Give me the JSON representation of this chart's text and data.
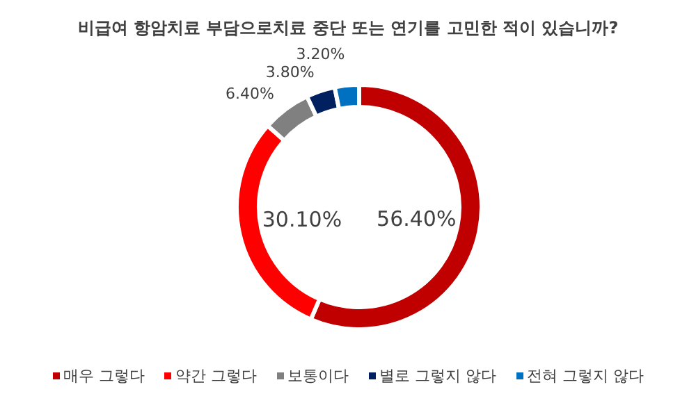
{
  "chart_data": {
    "type": "donut",
    "title": "비급여 항암치료 부담으로치료 중단 또는 연기를 고민한 적이 있습니까?",
    "categories": [
      "매우 그렇다",
      "약간 그렇다",
      "보통이다",
      "별로 그렇지 않다",
      "전혀 그렇지 않다"
    ],
    "values": [
      56.4,
      30.1,
      6.4,
      3.8,
      3.2
    ],
    "value_labels": [
      "56.40%",
      "30.10%",
      "6.40%",
      "3.80%",
      "3.20%"
    ],
    "colors": [
      "#c00000",
      "#ff0000",
      "#808080",
      "#002060",
      "#0070c0"
    ],
    "legend": "bottom"
  }
}
